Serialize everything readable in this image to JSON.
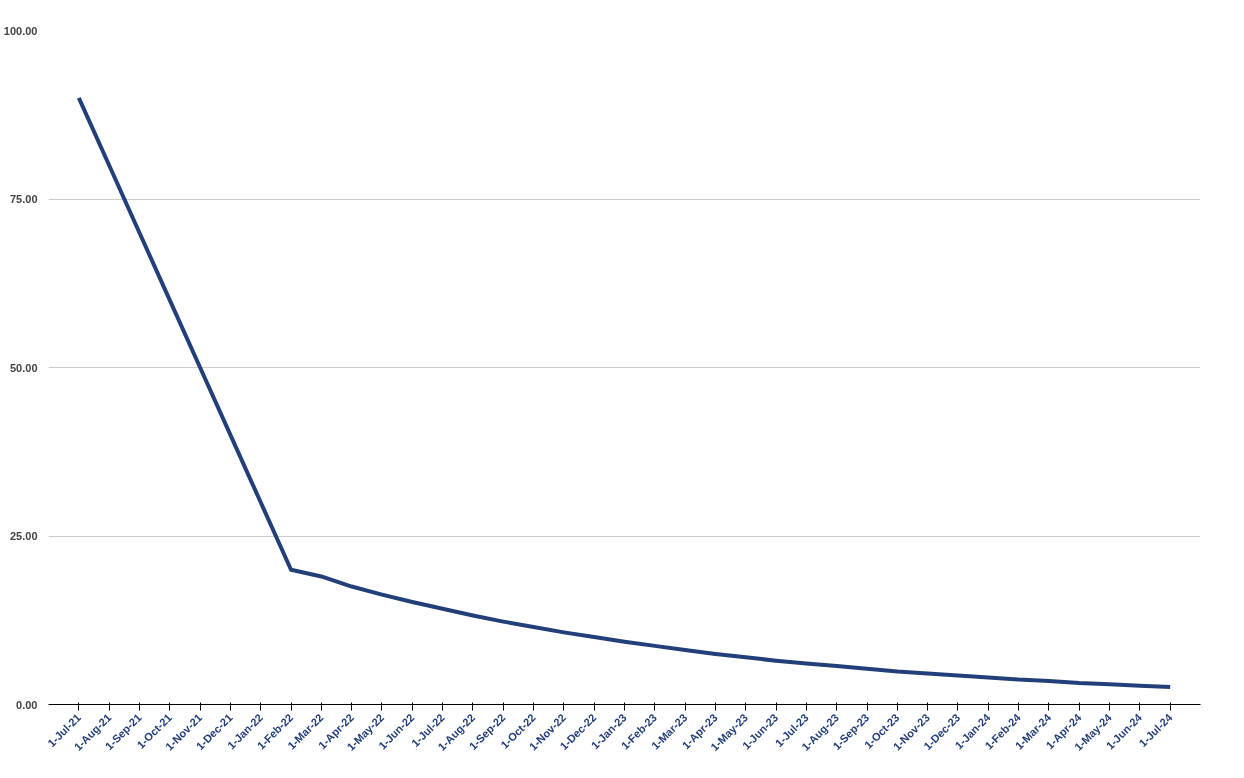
{
  "chart_data": {
    "type": "line",
    "categories": [
      "1-Jul-21",
      "1-Aug-21",
      "1-Sep-21",
      "1-Oct-21",
      "1-Nov-21",
      "1-Dec-21",
      "1-Jan-22",
      "1-Feb-22",
      "1-Mar-22",
      "1-Apr-22",
      "1-May-22",
      "1-Jun-22",
      "1-Jul-22",
      "1-Aug-22",
      "1-Sep-22",
      "1-Oct-22",
      "1-Nov-22",
      "1-Dec-22",
      "1-Jan-23",
      "1-Feb-23",
      "1-Mar-23",
      "1-Apr-23",
      "1-May-23",
      "1-Jun-23",
      "1-Jul-23",
      "1-Aug-23",
      "1-Sep-23",
      "1-Oct-23",
      "1-Nov-23",
      "1-Dec-23",
      "1-Jan-24",
      "1-Feb-24",
      "1-Mar-24",
      "1-Apr-24",
      "1-May-24",
      "1-Jun-24",
      "1-Jul-24"
    ],
    "series": [
      {
        "color": "#233f7a",
        "values": [
          90,
          80,
          70,
          60,
          50,
          40,
          30,
          20,
          19,
          17.5,
          16.3,
          15.2,
          14.2,
          13.2,
          12.3,
          11.5,
          10.7,
          10.0,
          9.3,
          8.7,
          8.1,
          7.5,
          7.0,
          6.5,
          6.1,
          5.7,
          5.3,
          4.9,
          4.6,
          4.3,
          4.0,
          3.7,
          3.5,
          3.2,
          3.0,
          2.8,
          2.6
        ]
      }
    ],
    "ylim": [
      0,
      100
    ],
    "yticks": [
      {
        "value": 0,
        "label": "0.00"
      },
      {
        "value": 25,
        "label": "25.00"
      },
      {
        "value": 50,
        "label": "50.00"
      },
      {
        "value": 75,
        "label": "75.00"
      },
      {
        "value": 100,
        "label": "100.00"
      }
    ],
    "grid": "y",
    "marker": "none",
    "line_style": "solid"
  }
}
